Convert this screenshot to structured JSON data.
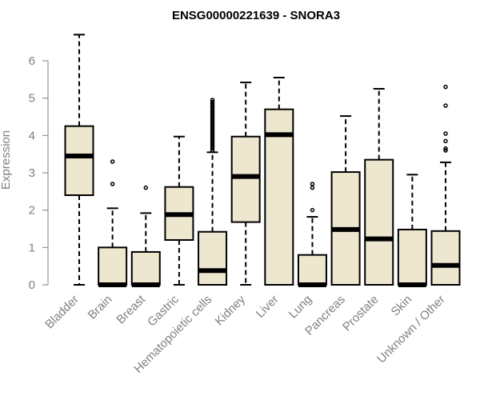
{
  "chart_data": {
    "type": "boxplot",
    "title": "ENSG00000221639 - SNORA3",
    "xlabel": "",
    "ylabel": "Expression",
    "ylim": [
      0,
      6.9
    ],
    "yticks": [
      "0",
      "1",
      "2",
      "3",
      "4",
      "5",
      "6"
    ],
    "grid": false,
    "colors": {
      "box_fill": "#ede7cf",
      "axis": "#808080",
      "tick_text": "#808080",
      "stroke": "#000000"
    },
    "categories": [
      "Bladder",
      "Brain",
      "Breast",
      "Gastric",
      "Hematopoietic cells",
      "Kidney",
      "Liver",
      "Lung",
      "Pancreas",
      "Prostate",
      "Skin",
      "Unknown / Other"
    ],
    "boxes": [
      {
        "name": "Bladder",
        "whisker_low": 0,
        "q1": 2.4,
        "median": 3.45,
        "q3": 4.25,
        "whisker_high": 6.7,
        "outliers": []
      },
      {
        "name": "Brain",
        "whisker_low": 0,
        "q1": 0,
        "median": 0,
        "q3": 1.0,
        "whisker_high": 2.05,
        "outliers": [
          2.7,
          3.3
        ]
      },
      {
        "name": "Breast",
        "whisker_low": 0,
        "q1": 0,
        "median": 0,
        "q3": 0.88,
        "whisker_high": 1.92,
        "outliers": [
          2.6
        ]
      },
      {
        "name": "Gastric",
        "whisker_low": 0,
        "q1": 1.2,
        "median": 1.88,
        "q3": 2.62,
        "whisker_high": 3.97,
        "outliers": []
      },
      {
        "name": "Hematopoietic cells",
        "whisker_low": 0,
        "q1": 0,
        "median": 0.38,
        "q3": 1.42,
        "whisker_high": 3.55,
        "outliers": [
          3.6,
          3.65,
          3.7,
          3.75,
          3.8,
          3.85,
          3.9,
          3.95,
          4.0,
          4.05,
          4.1,
          4.15,
          4.2,
          4.25,
          4.3,
          4.35,
          4.4,
          4.45,
          4.5,
          4.55,
          4.6,
          4.65,
          4.7,
          4.75,
          4.8,
          4.85,
          4.9,
          4.95
        ]
      },
      {
        "name": "Kidney",
        "whisker_low": 0,
        "q1": 1.68,
        "median": 2.9,
        "q3": 3.97,
        "whisker_high": 5.42,
        "outliers": []
      },
      {
        "name": "Liver",
        "whisker_low": 0,
        "q1": 0,
        "median": 4.02,
        "q3": 4.7,
        "whisker_high": 5.55,
        "outliers": []
      },
      {
        "name": "Lung",
        "whisker_low": 0,
        "q1": 0,
        "median": 0,
        "q3": 0.8,
        "whisker_high": 1.82,
        "outliers": [
          2.0,
          2.6,
          2.7
        ]
      },
      {
        "name": "Pancreas",
        "whisker_low": 0,
        "q1": 0,
        "median": 1.48,
        "q3": 3.02,
        "whisker_high": 4.52,
        "outliers": []
      },
      {
        "name": "Prostate",
        "whisker_low": 0,
        "q1": 0,
        "median": 1.23,
        "q3": 3.35,
        "whisker_high": 5.25,
        "outliers": []
      },
      {
        "name": "Skin",
        "whisker_low": 0,
        "q1": 0,
        "median": 0,
        "q3": 1.48,
        "whisker_high": 2.95,
        "outliers": []
      },
      {
        "name": "Unknown / Other",
        "whisker_low": 0,
        "q1": 0,
        "median": 0.52,
        "q3": 1.44,
        "whisker_high": 3.28,
        "outliers": [
          3.6,
          3.65,
          3.85,
          4.05,
          4.8,
          5.3
        ]
      }
    ]
  }
}
